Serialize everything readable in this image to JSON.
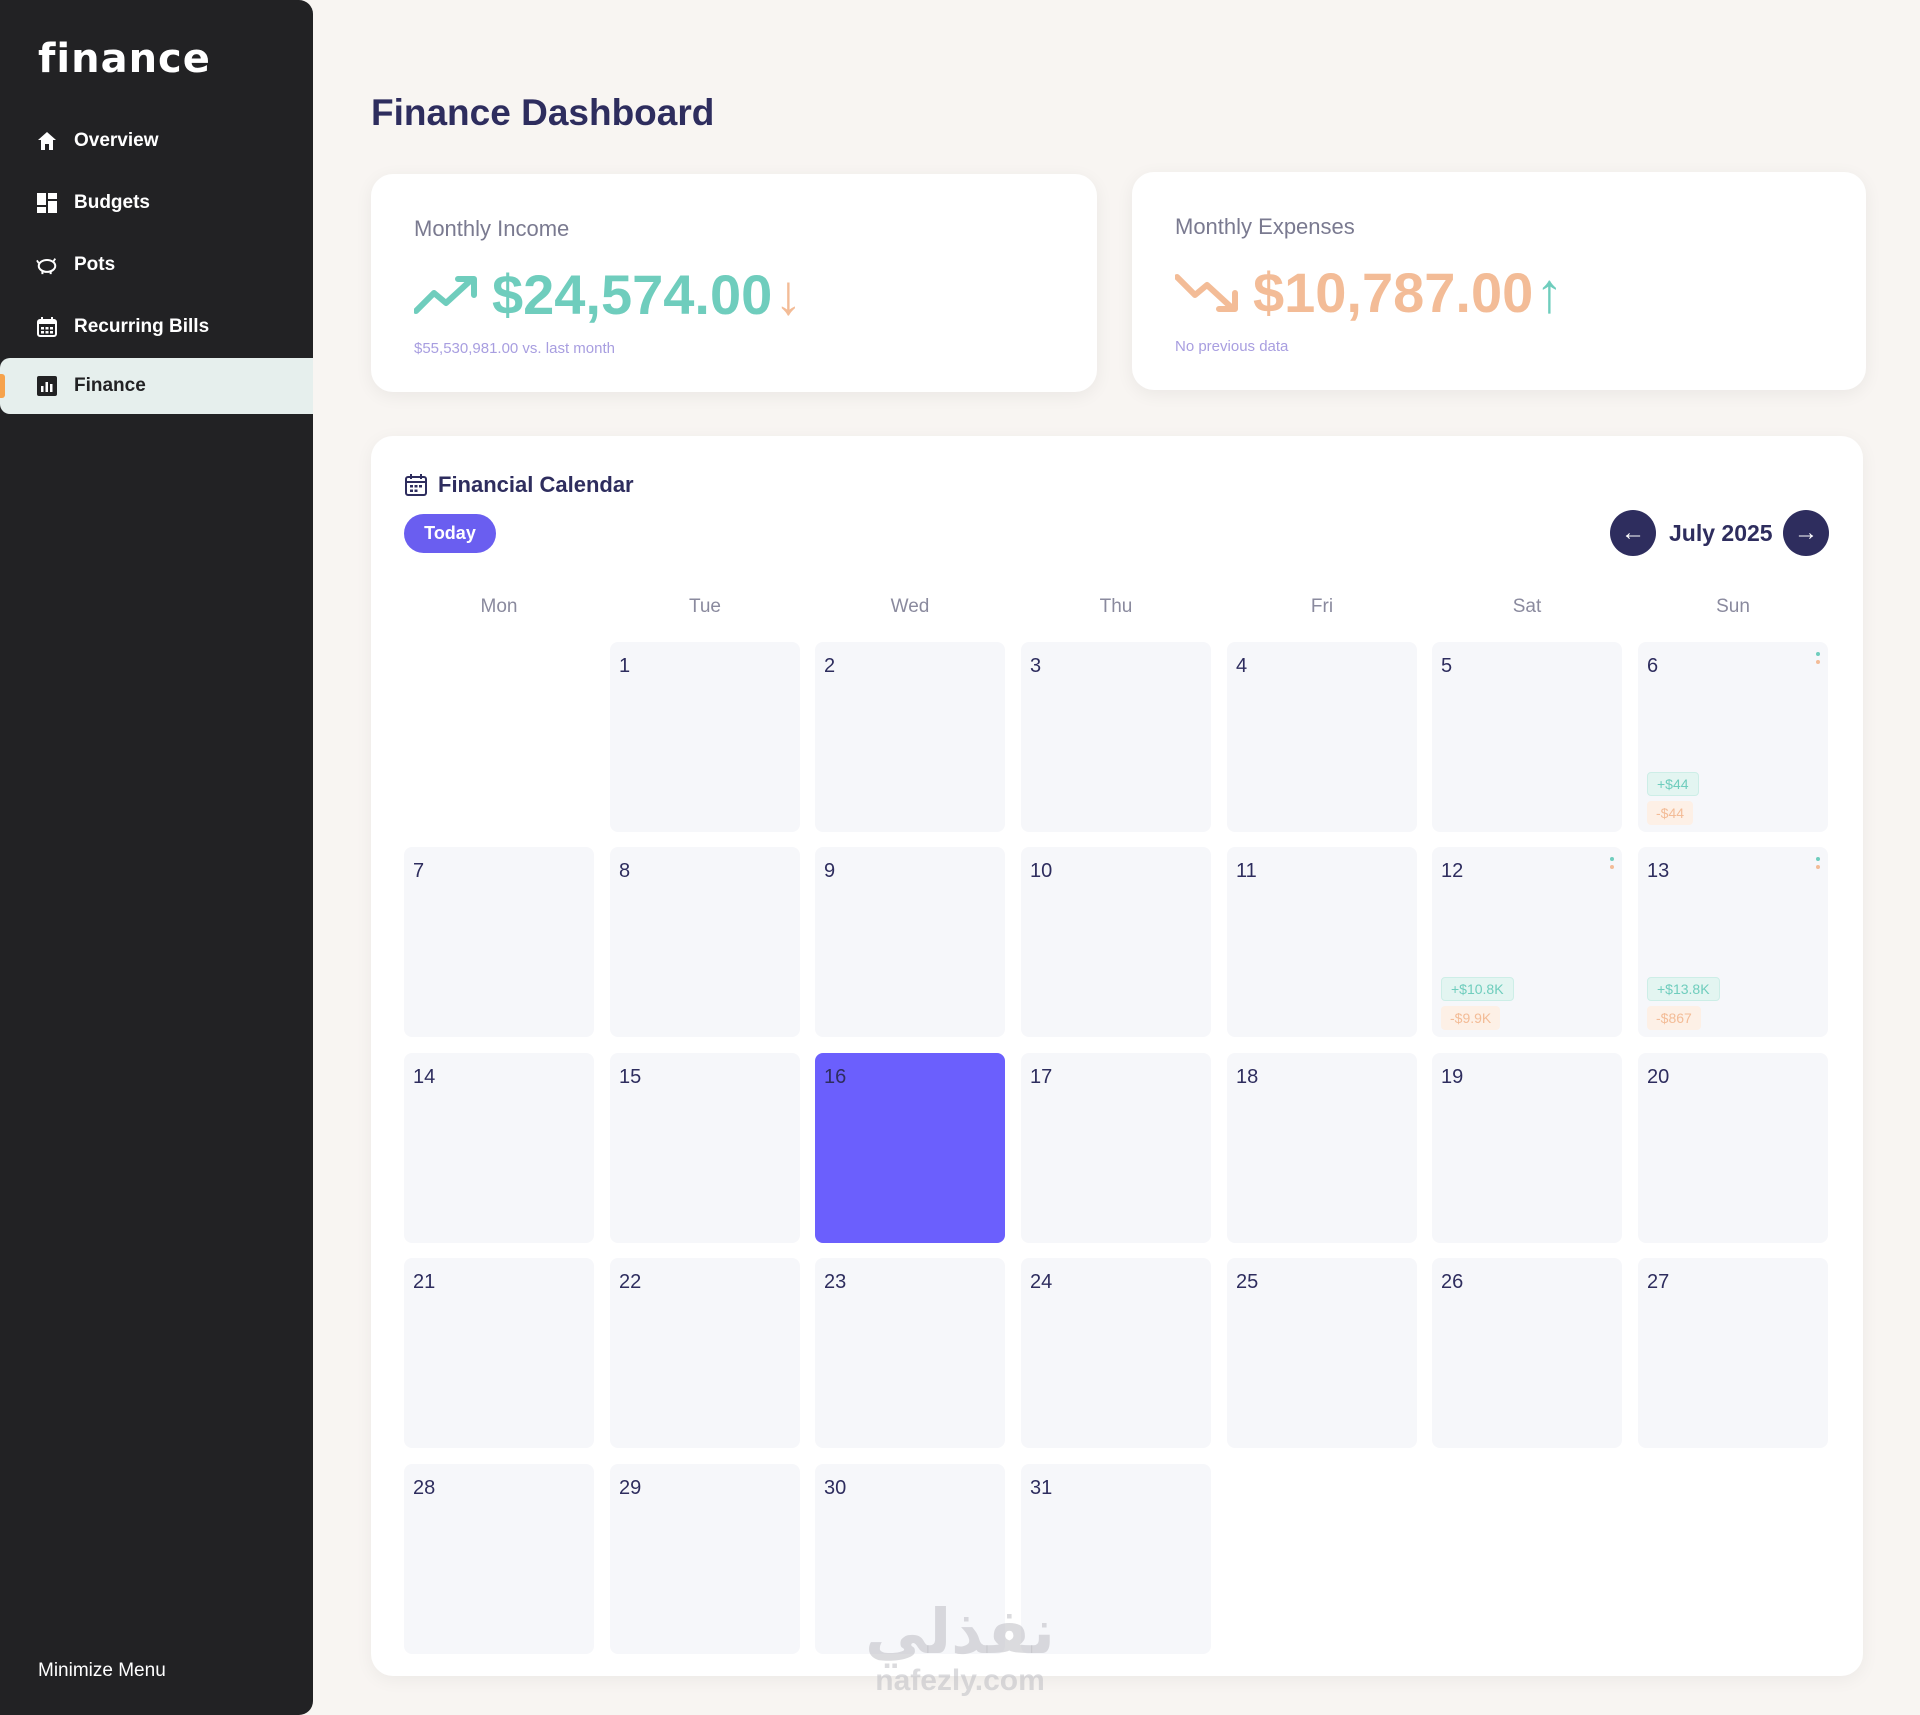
{
  "sidebar": {
    "brand": "finance",
    "items": [
      {
        "label": "Overview",
        "icon": "home-icon"
      },
      {
        "label": "Budgets",
        "icon": "grid-icon"
      },
      {
        "label": "Pots",
        "icon": "piggy-bank-icon"
      },
      {
        "label": "Recurring Bills",
        "icon": "calendar-icon"
      },
      {
        "label": "Finance",
        "icon": "bar-chart-icon",
        "active": true
      }
    ],
    "minimize_label": "Minimize Menu"
  },
  "header": {
    "title": "Finance Dashboard"
  },
  "income": {
    "label": "Monthly Income",
    "amount": "$24,574.00",
    "trend_arrow": "↓",
    "note": "$55,530,981.00 vs. last month",
    "color": "#6fcdbd"
  },
  "expenses": {
    "label": "Monthly Expenses",
    "amount": "$10,787.00",
    "trend_arrow": "↑",
    "note": "No previous data",
    "color": "#f3bc97"
  },
  "calendar": {
    "title": "Financial Calendar",
    "today_label": "Today",
    "month_label": "July 2025",
    "prev_arrow": "←",
    "next_arrow": "→",
    "weekdays": [
      "Mon",
      "Tue",
      "Wed",
      "Thu",
      "Fri",
      "Sat",
      "Sun"
    ],
    "accent": "#6b5ffd",
    "days": [
      {
        "day": ""
      },
      {
        "day": "1"
      },
      {
        "day": "2"
      },
      {
        "day": "3"
      },
      {
        "day": "4"
      },
      {
        "day": "5"
      },
      {
        "day": "6",
        "income": "+$44",
        "expense": "-$44"
      },
      {
        "day": "7"
      },
      {
        "day": "8"
      },
      {
        "day": "9"
      },
      {
        "day": "10"
      },
      {
        "day": "11"
      },
      {
        "day": "12",
        "income": "+$10.8K",
        "expense": "-$9.9K"
      },
      {
        "day": "13",
        "income": "+$13.8K",
        "expense": "-$867"
      },
      {
        "day": "14"
      },
      {
        "day": "15"
      },
      {
        "day": "16",
        "selected": true
      },
      {
        "day": "17"
      },
      {
        "day": "18"
      },
      {
        "day": "19"
      },
      {
        "day": "20"
      },
      {
        "day": "21"
      },
      {
        "day": "22"
      },
      {
        "day": "23"
      },
      {
        "day": "24"
      },
      {
        "day": "25"
      },
      {
        "day": "26"
      },
      {
        "day": "27"
      },
      {
        "day": "28"
      },
      {
        "day": "29"
      },
      {
        "day": "30"
      },
      {
        "day": "31"
      },
      {
        "day": ""
      },
      {
        "day": ""
      },
      {
        "day": ""
      }
    ]
  },
  "watermark": {
    "arabic": "نفذلي",
    "latin": "nafezly.com"
  }
}
